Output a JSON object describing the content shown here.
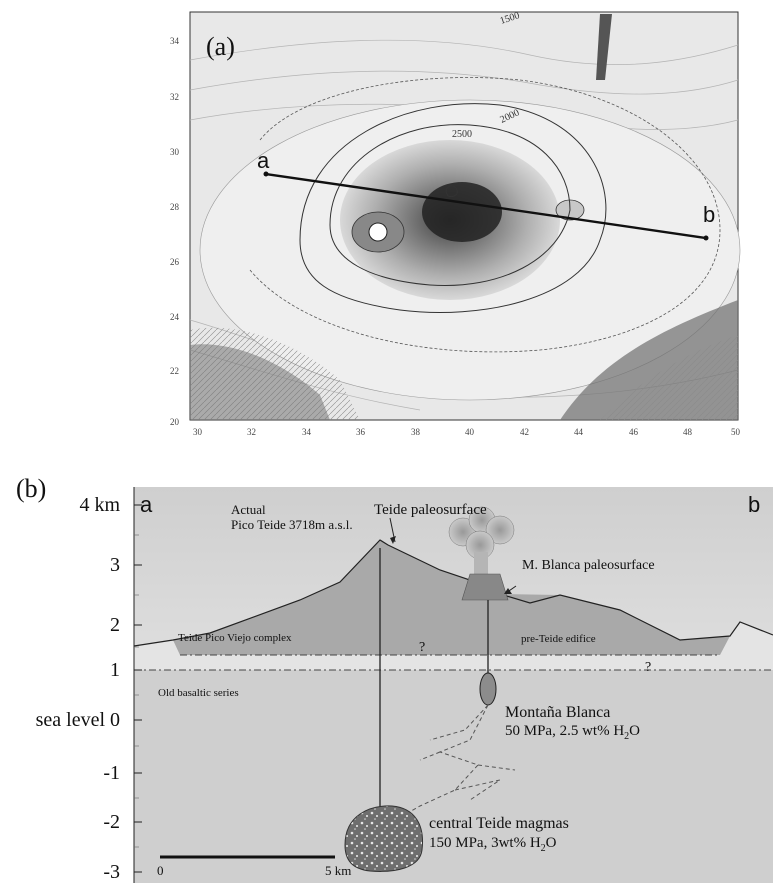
{
  "panel_a": {
    "label": "(a)",
    "profile_start": "a",
    "profile_end": "b",
    "contour_labels": [
      "1500",
      "2000",
      "2500"
    ],
    "y_ticks": [
      "34",
      "32",
      "30",
      "28",
      "26",
      "24",
      "22",
      "20"
    ],
    "x_ticks": [
      "30",
      "32",
      "34",
      "36",
      "38",
      "40",
      "42",
      "44",
      "46",
      "48",
      "50"
    ]
  },
  "panel_b": {
    "label": "(b)",
    "end_left": "a",
    "end_right": "b",
    "y_axis": [
      "4 km",
      "3",
      "2",
      "1",
      "sea level 0",
      "-1",
      "-2",
      "-3"
    ],
    "annotations": {
      "actual_1": "Actual",
      "actual_2": "Pico Teide 3718m a.s.l.",
      "teide_paleo": "Teide paleosurface",
      "mblanca_paleo": "M. Blanca paleosurface",
      "tpv_complex": "Teide Pico Viejo complex",
      "pre_teide": "pre-Teide edifice",
      "old_basaltic": "Old basaltic series",
      "mb_title": "Montaña Blanca",
      "mb_cond_pre": "50 MPa, 2.5 wt% H",
      "mb_sub": "2",
      "mb_cond_post": "O",
      "ct_title": "central Teide magmas",
      "ct_cond_pre": "150 MPa, 3wt% H",
      "ct_sub": "2",
      "ct_cond_post": "O",
      "q1": "?",
      "q2": "?"
    },
    "scale": {
      "zero": "0",
      "five": "5 km"
    }
  }
}
